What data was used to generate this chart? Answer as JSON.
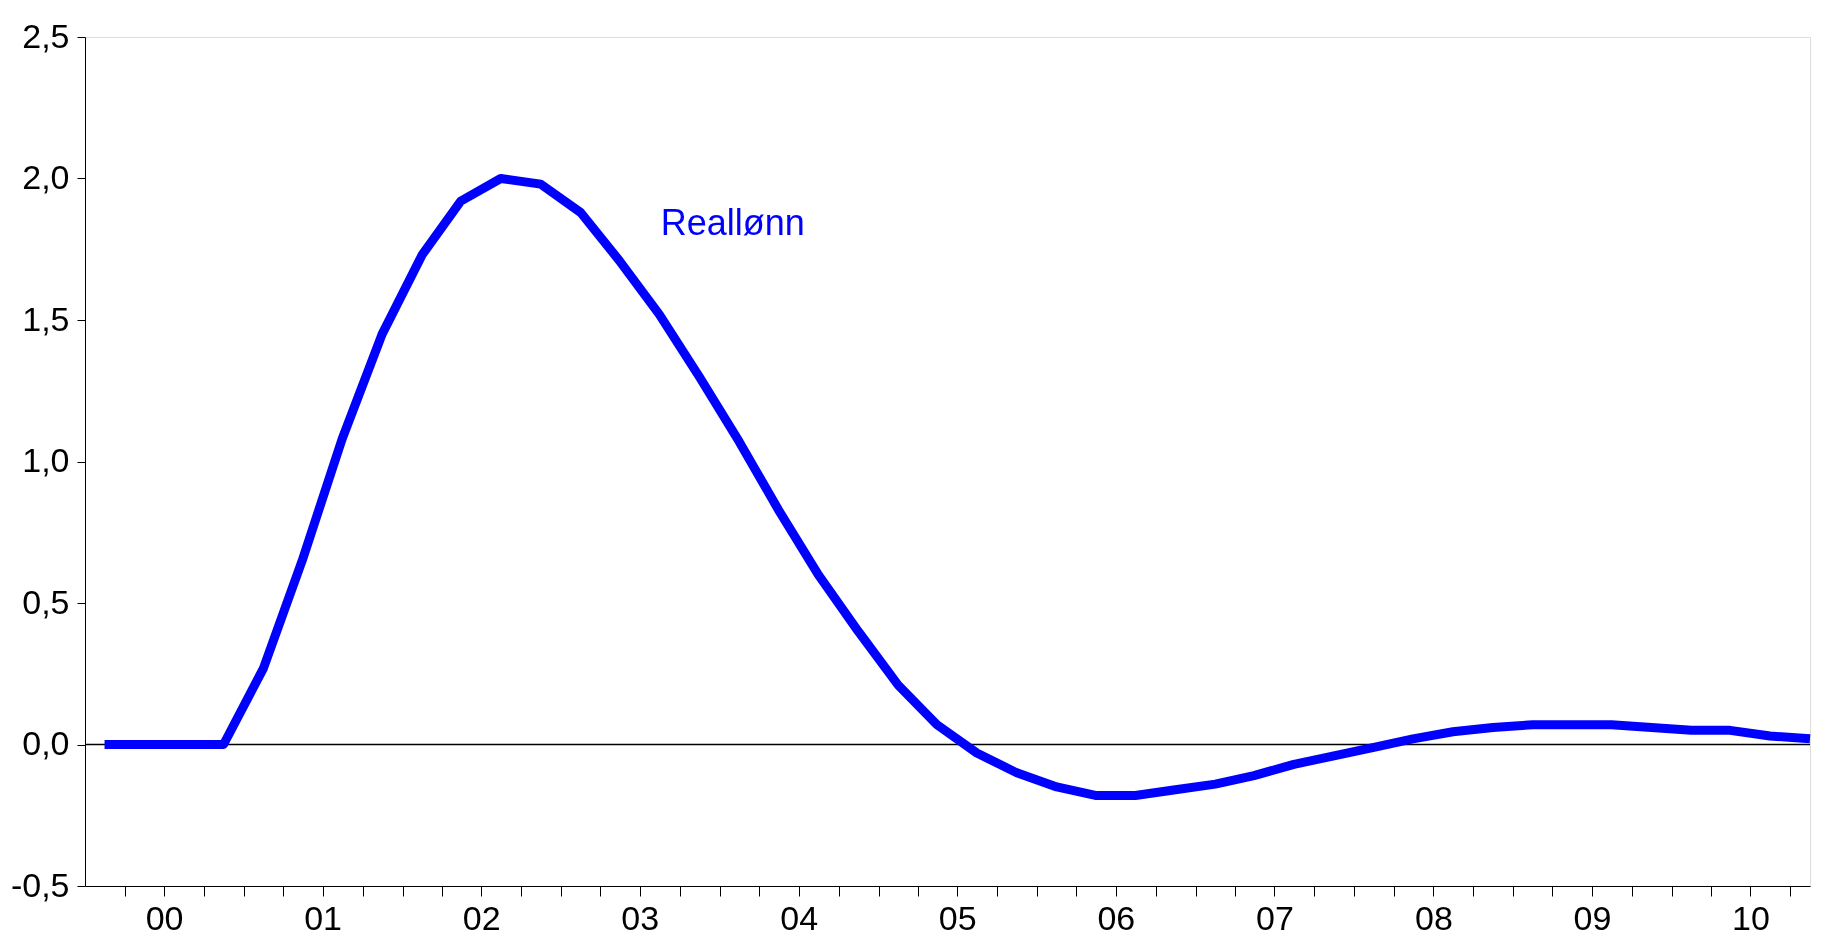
{
  "chart_data": {
    "type": "line",
    "x": [
      "2000-02-15",
      "2000-05-15",
      "2000-08-15",
      "2000-11-15",
      "2001-02-15",
      "2001-05-15",
      "2001-08-15",
      "2001-11-15",
      "2002-02-15",
      "2002-05-15",
      "2002-08-15",
      "2002-11-15",
      "2003-02-15",
      "2003-05-15",
      "2003-08-15",
      "2003-11-15",
      "2004-02-15",
      "2004-05-15",
      "2004-08-15",
      "2004-11-15",
      "2005-02-15",
      "2005-05-15",
      "2005-08-15",
      "2005-11-15",
      "2006-02-15",
      "2006-05-15",
      "2006-08-15",
      "2006-11-15",
      "2007-02-15",
      "2007-05-15",
      "2007-08-15",
      "2007-11-15",
      "2008-02-15",
      "2008-05-15",
      "2008-08-15",
      "2008-11-15",
      "2009-02-15",
      "2009-05-15",
      "2009-08-15",
      "2009-11-15",
      "2010-02-15",
      "2010-05-15",
      "2010-08-15",
      "2010-11-15"
    ],
    "series": [
      {
        "name": "Reallønn",
        "color": "#0000ff",
        "values": [
          0,
          0,
          0,
          0,
          0.27,
          0.65,
          1.08,
          1.45,
          1.73,
          1.92,
          2.0,
          1.98,
          1.88,
          1.71,
          1.52,
          1.3,
          1.07,
          0.83,
          0.6,
          0.4,
          0.21,
          0.07,
          -0.03,
          -0.1,
          -0.15,
          -0.18,
          -0.18,
          -0.16,
          -0.14,
          -0.11,
          -0.07,
          -0.04,
          -0.01,
          0.02,
          0.045,
          0.06,
          0.07,
          0.07,
          0.07,
          0.06,
          0.05,
          0.05,
          0.03,
          0.02
        ]
      }
    ],
    "xlim": [
      "2000-01-01",
      "2010-11-15"
    ],
    "xticks": [
      {
        "value": "2000-04-01",
        "label": null
      },
      {
        "value": "2000-07-01",
        "label": "00"
      },
      {
        "value": "2000-10-01",
        "label": null
      },
      {
        "value": "2001-01-01",
        "label": null
      },
      {
        "value": "2001-04-01",
        "label": null
      },
      {
        "value": "2001-07-01",
        "label": "01"
      },
      {
        "value": "2001-10-01",
        "label": null
      },
      {
        "value": "2002-01-01",
        "label": null
      },
      {
        "value": "2002-04-01",
        "label": null
      },
      {
        "value": "2002-07-01",
        "label": "02"
      },
      {
        "value": "2002-10-01",
        "label": null
      },
      {
        "value": "2003-01-01",
        "label": null
      },
      {
        "value": "2003-04-01",
        "label": null
      },
      {
        "value": "2003-07-01",
        "label": "03"
      },
      {
        "value": "2003-10-01",
        "label": null
      },
      {
        "value": "2004-01-01",
        "label": null
      },
      {
        "value": "2004-04-01",
        "label": null
      },
      {
        "value": "2004-07-01",
        "label": "04"
      },
      {
        "value": "2004-10-01",
        "label": null
      },
      {
        "value": "2005-01-01",
        "label": null
      },
      {
        "value": "2005-04-01",
        "label": null
      },
      {
        "value": "2005-07-01",
        "label": "05"
      },
      {
        "value": "2005-10-01",
        "label": null
      },
      {
        "value": "2006-01-01",
        "label": null
      },
      {
        "value": "2006-04-01",
        "label": null
      },
      {
        "value": "2006-07-01",
        "label": "06"
      },
      {
        "value": "2006-10-01",
        "label": null
      },
      {
        "value": "2007-01-01",
        "label": null
      },
      {
        "value": "2007-04-01",
        "label": null
      },
      {
        "value": "2007-07-01",
        "label": "07"
      },
      {
        "value": "2007-10-01",
        "label": null
      },
      {
        "value": "2008-01-01",
        "label": null
      },
      {
        "value": "2008-04-01",
        "label": null
      },
      {
        "value": "2008-07-01",
        "label": "08"
      },
      {
        "value": "2008-10-01",
        "label": null
      },
      {
        "value": "2009-01-01",
        "label": null
      },
      {
        "value": "2009-04-01",
        "label": null
      },
      {
        "value": "2009-07-01",
        "label": "09"
      },
      {
        "value": "2009-10-01",
        "label": null
      },
      {
        "value": "2010-01-01",
        "label": null
      },
      {
        "value": "2010-04-01",
        "label": null
      },
      {
        "value": "2010-07-01",
        "label": "10"
      },
      {
        "value": "2010-10-01",
        "label": null
      }
    ],
    "ylim": [
      -0.5,
      2.5
    ],
    "yticks": [
      {
        "value": -0.5,
        "label": "-0,5"
      },
      {
        "value": 0,
        "label": "0,0"
      },
      {
        "value": 0.5,
        "label": "0,5"
      },
      {
        "value": 1,
        "label": "1,0"
      },
      {
        "value": 1.5,
        "label": "1,5"
      },
      {
        "value": 2,
        "label": "2,0"
      },
      {
        "value": 2.5,
        "label": "2,5"
      }
    ],
    "ref_lines": [
      {
        "axis": "y",
        "value": 0,
        "color": "#000000"
      }
    ],
    "grid": false,
    "marker": "none",
    "line_style": "solid"
  }
}
